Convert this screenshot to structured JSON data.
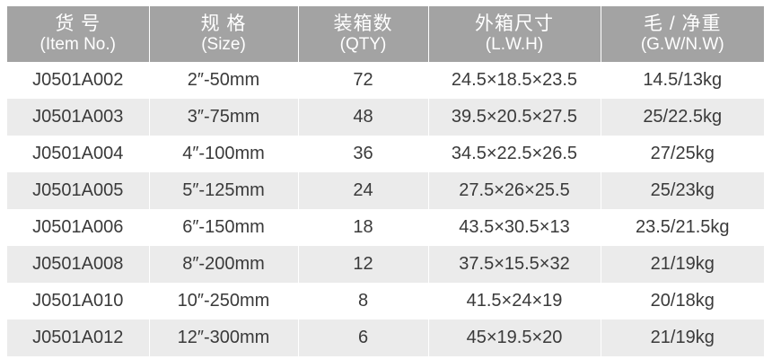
{
  "headers": [
    {
      "zh": "货 号",
      "en": "(Item No.)"
    },
    {
      "zh": "规 格",
      "en": "(Size)"
    },
    {
      "zh": "装箱数",
      "en": "(QTY)"
    },
    {
      "zh": "外箱尺寸",
      "en": "(L.W.H)"
    },
    {
      "zh": "毛 / 净重",
      "en": "(G.W/N.W)"
    }
  ],
  "rows": [
    [
      "J0501A002",
      "2″-50mm",
      "72",
      "24.5×18.5×23.5",
      "14.5/13kg"
    ],
    [
      "J0501A003",
      "3″-75mm",
      "48",
      "39.5×20.5×27.5",
      "25/22.5kg"
    ],
    [
      "J0501A004",
      "4″-100mm",
      "36",
      "34.5×22.5×26.5",
      "27/25kg"
    ],
    [
      "J0501A005",
      "5″-125mm",
      "24",
      "27.5×26×25.5",
      "25/23kg"
    ],
    [
      "J0501A006",
      "6″-150mm",
      "18",
      "43.5×30.5×13",
      "23.5/21.5kg"
    ],
    [
      "J0501A008",
      "8″-200mm",
      "12",
      "37.5×15.5×32",
      "21/19kg"
    ],
    [
      "J0501A010",
      "10″-250mm",
      "8",
      "41.5×24×19",
      "20/18kg"
    ],
    [
      "J0501A012",
      "12″-300mm",
      "6",
      "45×19.5×20",
      "21/19kg"
    ]
  ]
}
